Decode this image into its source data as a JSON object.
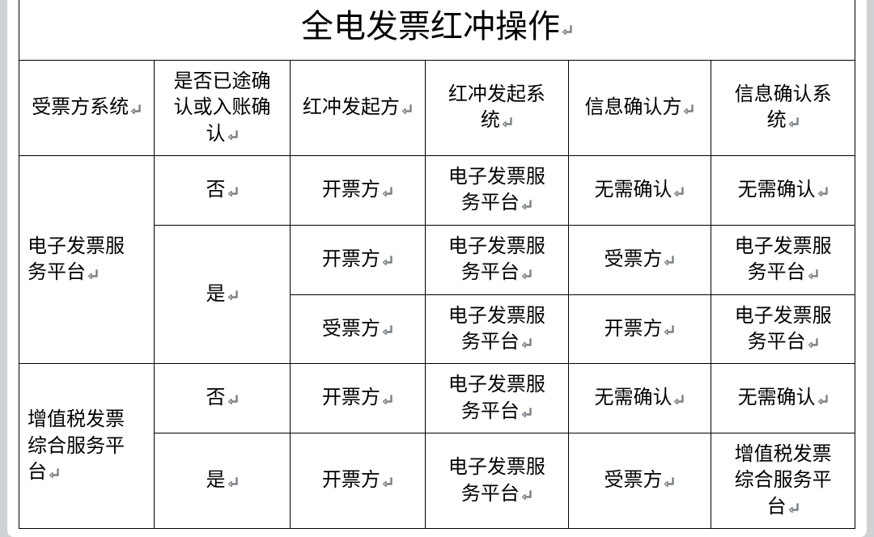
{
  "title": "全电发票红冲操作",
  "headers": [
    "受票方系统",
    "是否已途确认或入账确认",
    "红冲发起方",
    "红冲发起系统",
    "信息确认方",
    "信息确认系统"
  ],
  "groups": [
    {
      "system": "电子发票服务平台",
      "rows": [
        {
          "confirmed": "否",
          "confirmed_rowspan": 1,
          "initiator": "开票方",
          "init_system": "电子发票服务平台",
          "confirm_party": "无需确认",
          "confirm_system": "无需确认"
        },
        {
          "confirmed": "是",
          "confirmed_rowspan": 2,
          "initiator": "开票方",
          "init_system": "电子发票服务平台",
          "confirm_party": "受票方",
          "confirm_system": "电子发票服务平台"
        },
        {
          "initiator": "受票方",
          "init_system": "电子发票服务平台",
          "confirm_party": "开票方",
          "confirm_system": "电子发票服务平台"
        }
      ]
    },
    {
      "system": "增值税发票综合服务平台",
      "rows": [
        {
          "confirmed": "否",
          "confirmed_rowspan": 1,
          "initiator": "开票方",
          "init_system": "电子发票服务平台",
          "confirm_party": "无需确认",
          "confirm_system": "无需确认"
        },
        {
          "confirmed": "是",
          "confirmed_rowspan": 1,
          "initiator": "开票方",
          "init_system": "电子发票服务平台",
          "confirm_party": "受票方",
          "confirm_system": "增值税发票综合服务平台"
        }
      ]
    }
  ],
  "glyph": {
    "color": "#7a8085",
    "size": 14
  },
  "layout": {
    "col_widths_pct": [
      16.2,
      16.2,
      16.2,
      17.1,
      17.1,
      17.2
    ],
    "border_color": "#000000",
    "background": "#ffffff",
    "page_bg": "#cfd2d4",
    "title_fontsize": 40,
    "cell_fontsize": 24,
    "font_family": "SimSun"
  }
}
